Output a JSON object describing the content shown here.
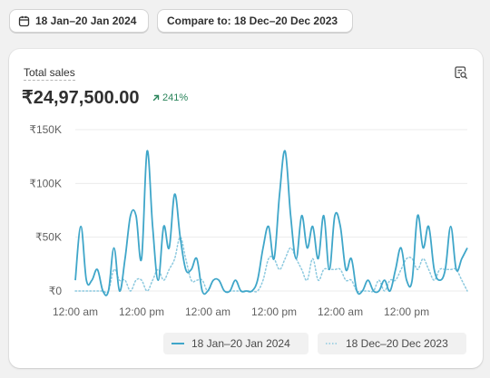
{
  "filters": {
    "date_range": "18 Jan–20 Jan 2024",
    "compare_label": "Compare to: 18 Dec–20 Dec 2023"
  },
  "metric": {
    "label": "Total sales",
    "value": "₹24,97,500.00",
    "change": "241%",
    "change_color": "#29845a"
  },
  "colors": {
    "current": "#3fa6c9",
    "previous": "#8cc9df",
    "grid": "#ebebeb"
  },
  "icons": {
    "date": "calendar-icon",
    "explore": "explore-data-icon",
    "change": "arrow-up-right-icon"
  },
  "chart_data": {
    "type": "line",
    "x_unit": "hours",
    "xlim": [
      0,
      71
    ],
    "x_ticks": [
      {
        "x": 0,
        "label": "12:00 am"
      },
      {
        "x": 12,
        "label": "12:00 pm"
      },
      {
        "x": 24,
        "label": "12:00 am"
      },
      {
        "x": 36,
        "label": "12:00 pm"
      },
      {
        "x": 48,
        "label": "12:00 am"
      },
      {
        "x": 60,
        "label": "12:00 pm"
      }
    ],
    "y_ticks": [
      {
        "v": 0,
        "label": "₹0"
      },
      {
        "v": 50000,
        "label": "₹50K"
      },
      {
        "v": 100000,
        "label": "₹100K"
      },
      {
        "v": 150000,
        "label": "₹150K"
      }
    ],
    "ylim": [
      0,
      150000
    ],
    "grid": true,
    "legend_position": "bottom-right",
    "series": [
      {
        "name": "18 Jan–20 Jan 2024",
        "style": "solid",
        "values": [
          10000,
          60000,
          10000,
          10000,
          20000,
          0,
          0,
          40000,
          0,
          30000,
          70000,
          70000,
          30000,
          130000,
          60000,
          10000,
          60000,
          40000,
          90000,
          50000,
          20000,
          20000,
          30000,
          0,
          0,
          10000,
          10000,
          0,
          0,
          10000,
          0,
          0,
          0,
          10000,
          40000,
          60000,
          30000,
          90000,
          130000,
          70000,
          30000,
          70000,
          40000,
          60000,
          30000,
          70000,
          20000,
          70000,
          60000,
          20000,
          30000,
          0,
          0,
          10000,
          0,
          0,
          10000,
          0,
          20000,
          40000,
          10000,
          10000,
          70000,
          40000,
          60000,
          20000,
          10000,
          20000,
          60000,
          20000,
          30000,
          40000
        ]
      },
      {
        "name": "18 Dec–20 Dec 2023",
        "style": "dotted",
        "values": [
          0,
          0,
          0,
          0,
          0,
          0,
          0,
          20000,
          10000,
          10000,
          0,
          10000,
          10000,
          0,
          10000,
          20000,
          10000,
          20000,
          30000,
          50000,
          30000,
          10000,
          10000,
          10000,
          0,
          10000,
          10000,
          0,
          0,
          0,
          0,
          0,
          0,
          0,
          10000,
          30000,
          30000,
          20000,
          30000,
          40000,
          30000,
          20000,
          10000,
          30000,
          10000,
          20000,
          20000,
          20000,
          20000,
          10000,
          10000,
          0,
          0,
          0,
          0,
          10000,
          0,
          10000,
          10000,
          20000,
          30000,
          30000,
          20000,
          30000,
          20000,
          10000,
          20000,
          20000,
          20000,
          20000,
          10000,
          0
        ]
      }
    ]
  }
}
